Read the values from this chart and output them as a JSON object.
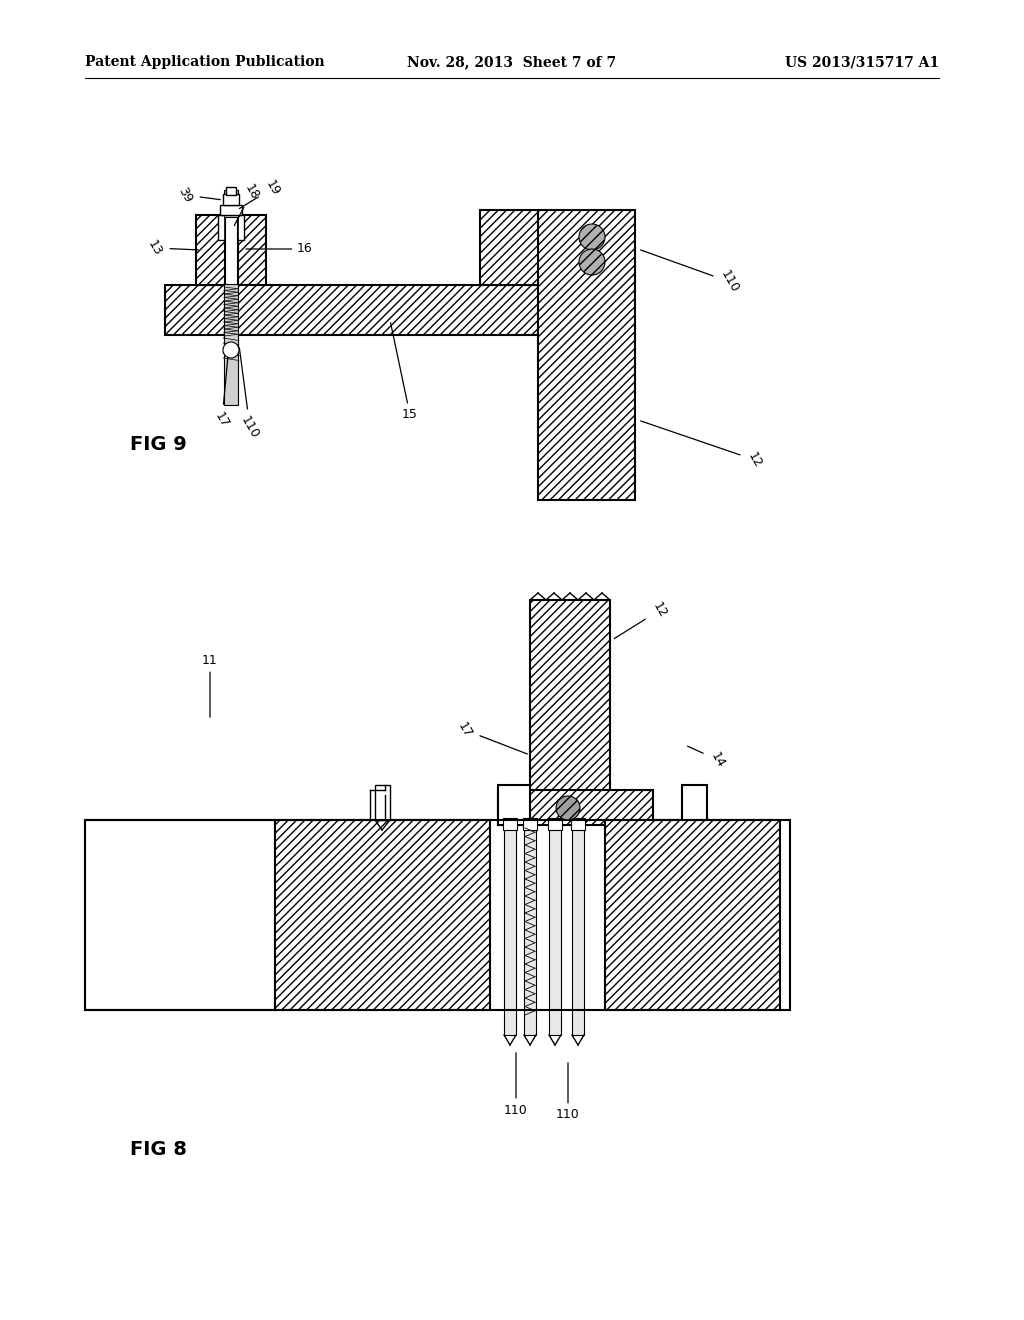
{
  "bg_color": "#ffffff",
  "lc": "#000000",
  "header_left": "Patent Application Publication",
  "header_mid": "Nov. 28, 2013  Sheet 7 of 7",
  "header_right": "US 2013/315717 A1",
  "fig9_label": "FIG 9",
  "fig8_label": "FIG 8"
}
